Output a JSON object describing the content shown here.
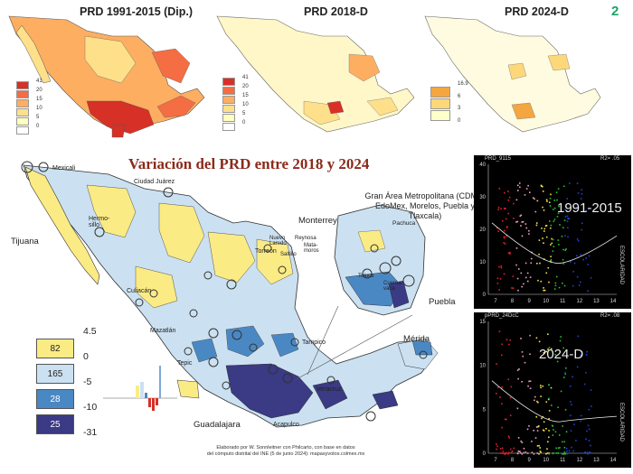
{
  "page_number": "2",
  "mini_maps": [
    {
      "title": "PRD 1991-2015 (Dip.)",
      "legend_ticks": [
        "41",
        "20",
        "15",
        "10",
        "5",
        "0"
      ],
      "legend_colors": [
        "#d73027",
        "#f46d43",
        "#fdae61",
        "#fee08b",
        "#ffffbf",
        "#ffffff"
      ]
    },
    {
      "title": "PRD 2018-D",
      "legend_ticks": [
        "41",
        "20",
        "15",
        "10",
        "5",
        "0"
      ],
      "legend_colors": [
        "#d73027",
        "#f46d43",
        "#fdae61",
        "#fee08b",
        "#ffffbf",
        "#ffffff"
      ]
    },
    {
      "title": "PRD 2024-D",
      "legend_ticks": [
        "16.9",
        "6",
        "3",
        "0"
      ],
      "legend_colors": [
        "#f4a640",
        "#fdd87a",
        "#ffffcc",
        "#ffffff"
      ]
    }
  ],
  "main_map": {
    "title": "Variación del PRD entre 2018 y 2024",
    "gam_title": "Gran Área Metropolitana (CDMX, EdoMex, Morelos, Puebla y Tlaxcala)",
    "cities": [
      "Mexicali",
      "Ciudad Juárez",
      "Hermo-sillo",
      "Tijuana",
      "Torreón",
      "Monterrey",
      "Nuevo Laredo",
      "Reynosa",
      "Saltillo",
      "Mata-moros",
      "Culiacán",
      "Mazatlán",
      "Tepic",
      "Tampico",
      "Mérida",
      "Veracruz",
      "Guadalajara",
      "Acapulco",
      "Pachuca",
      "Toluca",
      "Cuerna-vaca",
      "Puebla"
    ],
    "legend": [
      {
        "count": "82",
        "color": "#fbeb84",
        "text_color": "#222"
      },
      {
        "count": "165",
        "color": "#cbe1f1",
        "text_color": "#222"
      },
      {
        "count": "28",
        "color": "#4a88c4",
        "text_color": "#fff"
      },
      {
        "count": "25",
        "color": "#3b3a84",
        "text_color": "#fff"
      }
    ],
    "thresholds": [
      "4.5",
      "0",
      "-5",
      "-10",
      "-31"
    ],
    "credit_lines": [
      "Elaborado por W. Sonnleitner con Philcarto, con base en datos",
      "del cómputo distrital del INE (5 de junio 2024): mapasyvotos.colmex.mx"
    ]
  },
  "scatter_plots": [
    {
      "y_label": "PRD_9115",
      "r2": "R2= .05",
      "big_label": "1991-2015",
      "x_label": "ESCOLARIDAD",
      "y_ticks": [
        "40",
        "30",
        "20",
        "10",
        "0"
      ],
      "x_ticks": [
        "7",
        "8",
        "9",
        "10",
        "11",
        "12",
        "13",
        "14"
      ]
    },
    {
      "y_label": "pPRD_24DcC",
      "r2": "R2= .08",
      "big_label": "2024-D",
      "x_label": "ESCOLARIDAD",
      "y_ticks": [
        "15",
        "10",
        "5",
        "0"
      ],
      "x_ticks": [
        "7",
        "8",
        "9",
        "10",
        "11",
        "12",
        "13",
        "14"
      ]
    }
  ],
  "colors": {
    "title_red": "#8b2a1a",
    "accent_green": "#18a566"
  }
}
